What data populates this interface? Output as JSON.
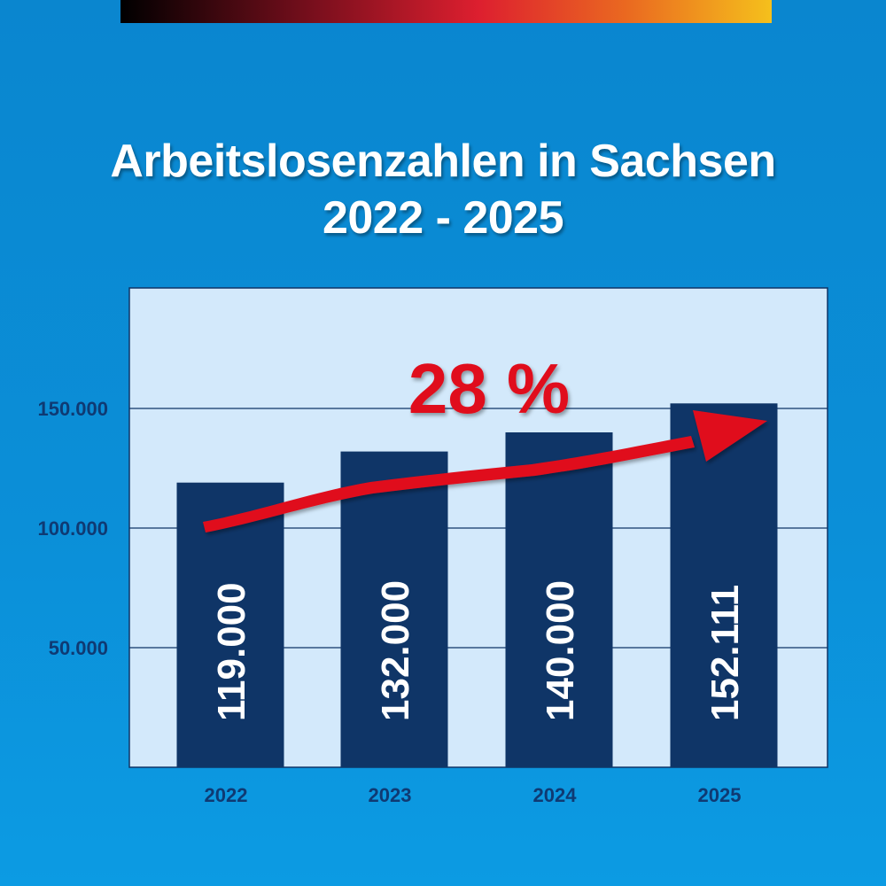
{
  "header": {
    "title_line1": "Arbeitslosenzahlen in Sachsen",
    "title_line2": "2022 - 2025"
  },
  "colors": {
    "background": "#0b8fd8",
    "plot_background": "#d3e9fb",
    "bar": "#0f3567",
    "axis_text": "#0f3a73",
    "arrow": "#e0101e"
  },
  "chart_data": {
    "type": "bar",
    "title": "Arbeitslosenzahlen in Sachsen 2022 - 2025",
    "categories": [
      "2022",
      "2023",
      "2024",
      "2025"
    ],
    "values": [
      119000,
      132000,
      140000,
      152111
    ],
    "data_labels": [
      "119.000",
      "132.000",
      "140.000",
      "152.111"
    ],
    "xlabel": "",
    "ylabel": "",
    "ylim": [
      0,
      200000
    ],
    "yticks": [
      50000,
      100000,
      150000
    ],
    "ytick_labels": [
      "50.000",
      "100.000",
      "150.000"
    ],
    "grid": true,
    "annotation": {
      "text": "28 %",
      "type": "trend-arrow"
    }
  }
}
